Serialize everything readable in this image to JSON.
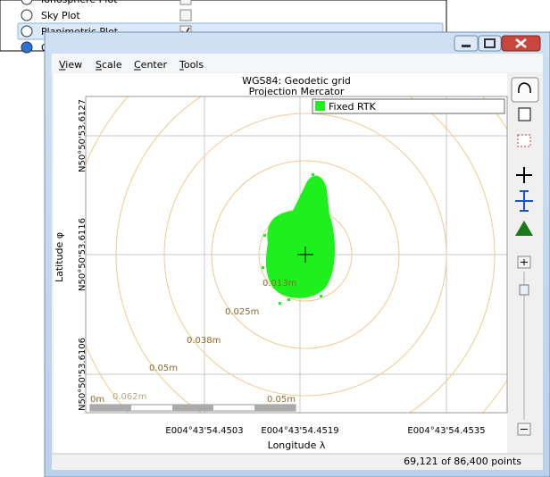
{
  "menu_list": {
    "items": [
      {
        "label": "Ionosphere Plot",
        "checked": false
      },
      {
        "label": "Sky Plot",
        "checked": false
      },
      {
        "label": "Planimetric Plot",
        "checked": true
      },
      {
        "label": "General File Information",
        "checked": false
      }
    ]
  },
  "window": {
    "menu": [
      "View",
      "Scale",
      "Center",
      "Tools"
    ],
    "plot": {
      "title": "WGS84: Geodetic grid",
      "subtitle": "Projection Mercator",
      "legend": "Fixed RTK",
      "y_axis_title": "Latitude φ",
      "y_ticks": [
        "N50°50'53.6127",
        "N50°50'53.6116",
        "N50°50'53.6106"
      ],
      "x_axis_title": "Longitude λ",
      "x_ticks": [
        "E004°43'54.4503",
        "E004°43'54.4519",
        "E004°43'54.4535"
      ],
      "ring_labels": [
        "0.013m",
        "0.025m",
        "0.038m",
        "0.05m",
        "0.062m"
      ],
      "scale_bar": {
        "start": "0m",
        "end": "0.05m"
      }
    },
    "status": "69,121 of 86,400 points"
  }
}
